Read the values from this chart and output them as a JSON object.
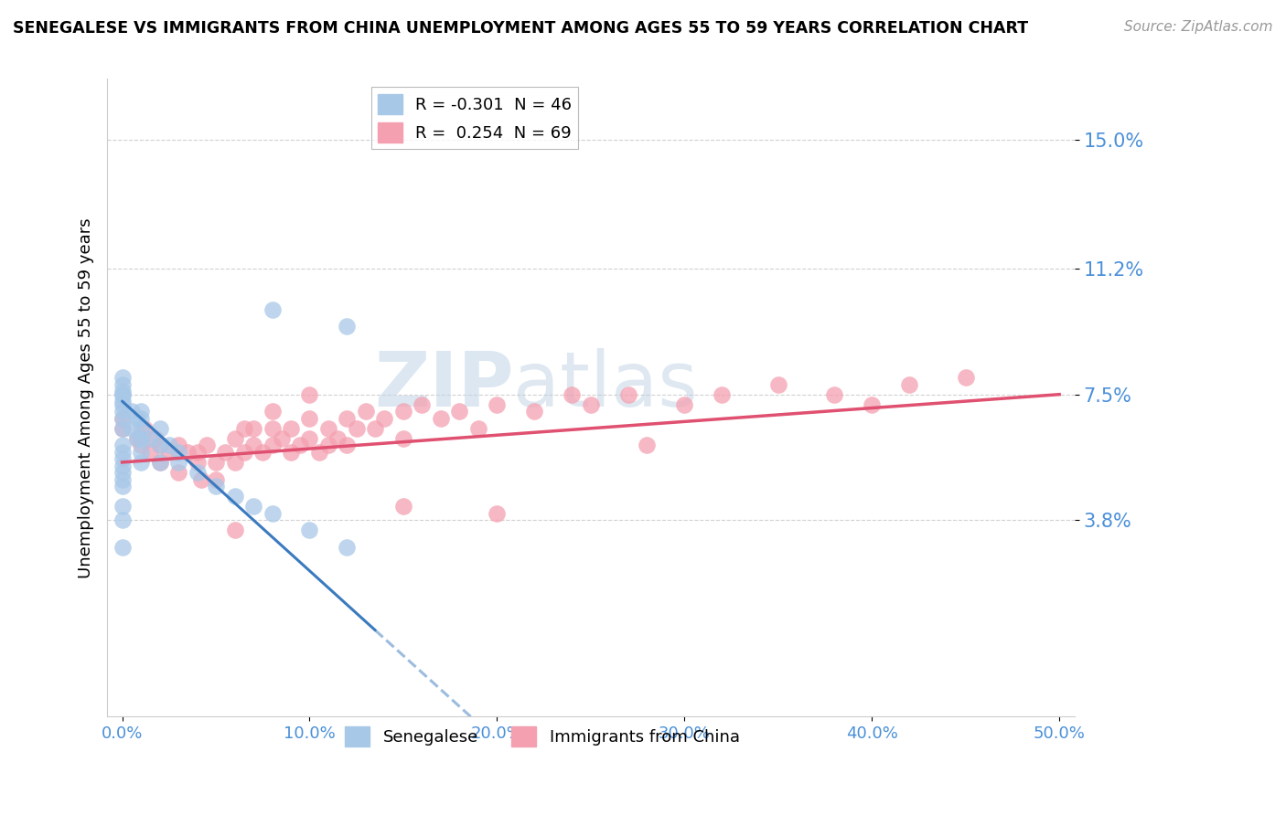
{
  "title": "SENEGALESE VS IMMIGRANTS FROM CHINA UNEMPLOYMENT AMONG AGES 55 TO 59 YEARS CORRELATION CHART",
  "source": "Source: ZipAtlas.com",
  "ylabel": "Unemployment Among Ages 55 to 59 years",
  "xlim": [
    0.0,
    0.5
  ],
  "ylim": [
    0.0,
    0.16
  ],
  "yticks": [
    0.038,
    0.075,
    0.112,
    0.15
  ],
  "ytick_labels": [
    "3.8%",
    "7.5%",
    "11.2%",
    "15.0%"
  ],
  "xticks": [
    0.0,
    0.1,
    0.2,
    0.3,
    0.4,
    0.5
  ],
  "xtick_labels": [
    "0.0%",
    "10.0%",
    "20.0%",
    "30.0%",
    "40.0%",
    "50.0%"
  ],
  "legend1_label": "R = -0.301  N = 46",
  "legend2_label": "R =  0.254  N = 69",
  "color_blue": "#a8c8e8",
  "color_pink": "#f4a0b0",
  "color_blue_line": "#3a7abf",
  "color_pink_line": "#e05070",
  "color_axis": "#4a90d9",
  "senegalese_x": [
    0.0,
    0.0,
    0.0,
    0.0,
    0.0,
    0.0,
    0.0,
    0.0,
    0.0,
    0.0,
    0.0,
    0.0,
    0.0,
    0.0,
    0.0,
    0.0,
    0.0,
    0.0,
    0.0,
    0.0,
    0.005,
    0.005,
    0.008,
    0.008,
    0.01,
    0.01,
    0.01,
    0.01,
    0.01,
    0.01,
    0.015,
    0.02,
    0.02,
    0.02,
    0.025,
    0.03,
    0.03,
    0.04,
    0.05,
    0.06,
    0.07,
    0.08,
    0.1,
    0.12,
    0.08,
    0.12
  ],
  "senegalese_y": [
    0.065,
    0.068,
    0.07,
    0.072,
    0.073,
    0.075,
    0.075,
    0.076,
    0.078,
    0.08,
    0.06,
    0.058,
    0.056,
    0.054,
    0.052,
    0.05,
    0.048,
    0.042,
    0.038,
    0.03,
    0.065,
    0.07,
    0.068,
    0.062,
    0.065,
    0.068,
    0.07,
    0.062,
    0.058,
    0.055,
    0.062,
    0.065,
    0.06,
    0.055,
    0.06,
    0.058,
    0.055,
    0.052,
    0.048,
    0.045,
    0.042,
    0.04,
    0.035,
    0.03,
    0.1,
    0.095
  ],
  "china_x": [
    0.0,
    0.0,
    0.008,
    0.01,
    0.012,
    0.015,
    0.018,
    0.02,
    0.02,
    0.025,
    0.03,
    0.03,
    0.035,
    0.04,
    0.04,
    0.042,
    0.045,
    0.05,
    0.05,
    0.055,
    0.06,
    0.06,
    0.065,
    0.065,
    0.07,
    0.07,
    0.075,
    0.08,
    0.08,
    0.085,
    0.09,
    0.09,
    0.095,
    0.1,
    0.1,
    0.105,
    0.11,
    0.11,
    0.115,
    0.12,
    0.12,
    0.125,
    0.13,
    0.135,
    0.14,
    0.15,
    0.15,
    0.16,
    0.17,
    0.18,
    0.19,
    0.2,
    0.22,
    0.24,
    0.25,
    0.27,
    0.3,
    0.32,
    0.35,
    0.38,
    0.4,
    0.42,
    0.45,
    0.28,
    0.2,
    0.15,
    0.1,
    0.08,
    0.06
  ],
  "china_y": [
    0.068,
    0.065,
    0.062,
    0.06,
    0.065,
    0.058,
    0.062,
    0.055,
    0.06,
    0.058,
    0.052,
    0.06,
    0.058,
    0.055,
    0.058,
    0.05,
    0.06,
    0.05,
    0.055,
    0.058,
    0.055,
    0.062,
    0.058,
    0.065,
    0.06,
    0.065,
    0.058,
    0.06,
    0.065,
    0.062,
    0.058,
    0.065,
    0.06,
    0.062,
    0.068,
    0.058,
    0.06,
    0.065,
    0.062,
    0.06,
    0.068,
    0.065,
    0.07,
    0.065,
    0.068,
    0.062,
    0.07,
    0.072,
    0.068,
    0.07,
    0.065,
    0.072,
    0.07,
    0.075,
    0.072,
    0.075,
    0.072,
    0.075,
    0.078,
    0.075,
    0.072,
    0.078,
    0.08,
    0.06,
    0.04,
    0.042,
    0.075,
    0.07,
    0.035
  ],
  "sen_line_x0": 0.0,
  "sen_line_x1": 0.135,
  "sen_line_x_dash0": 0.135,
  "sen_line_x_dash1": 0.5,
  "sen_line_y_intercept": 0.073,
  "sen_line_slope": -0.5,
  "china_line_x0": 0.0,
  "china_line_x1": 0.5,
  "china_line_y0": 0.055,
  "china_line_y1": 0.075
}
